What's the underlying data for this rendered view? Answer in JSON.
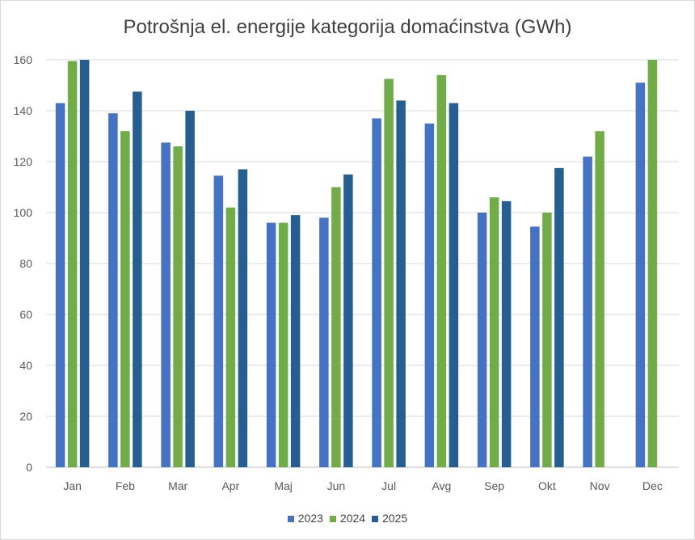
{
  "chart_data": {
    "type": "bar",
    "title": "Potrošnja el. energije kategorija domaćinstva (GWh)",
    "xlabel": "",
    "ylabel": "",
    "ylim": [
      0,
      160
    ],
    "yticks": [
      0,
      20,
      40,
      60,
      80,
      100,
      120,
      140,
      160
    ],
    "grid": true,
    "legend_position": "bottom",
    "categories": [
      "Jan",
      "Feb",
      "Mar",
      "Apr",
      "Maj",
      "Jun",
      "Jul",
      "Avg",
      "Sep",
      "Okt",
      "Nov",
      "Dec"
    ],
    "series": [
      {
        "name": "2023",
        "color": "#4472c4",
        "values": [
          143,
          139,
          127.5,
          114.5,
          96,
          98,
          137,
          135,
          100,
          94.5,
          122,
          151
        ]
      },
      {
        "name": "2024",
        "color": "#70ad47",
        "values": [
          159.5,
          132,
          126,
          102,
          96,
          110,
          152.5,
          154,
          106,
          100,
          132,
          160
        ]
      },
      {
        "name": "2025",
        "color": "#255e91",
        "values": [
          160,
          147.5,
          140,
          117,
          99,
          115,
          144,
          143,
          104.5,
          117.5,
          null,
          null
        ]
      }
    ]
  }
}
